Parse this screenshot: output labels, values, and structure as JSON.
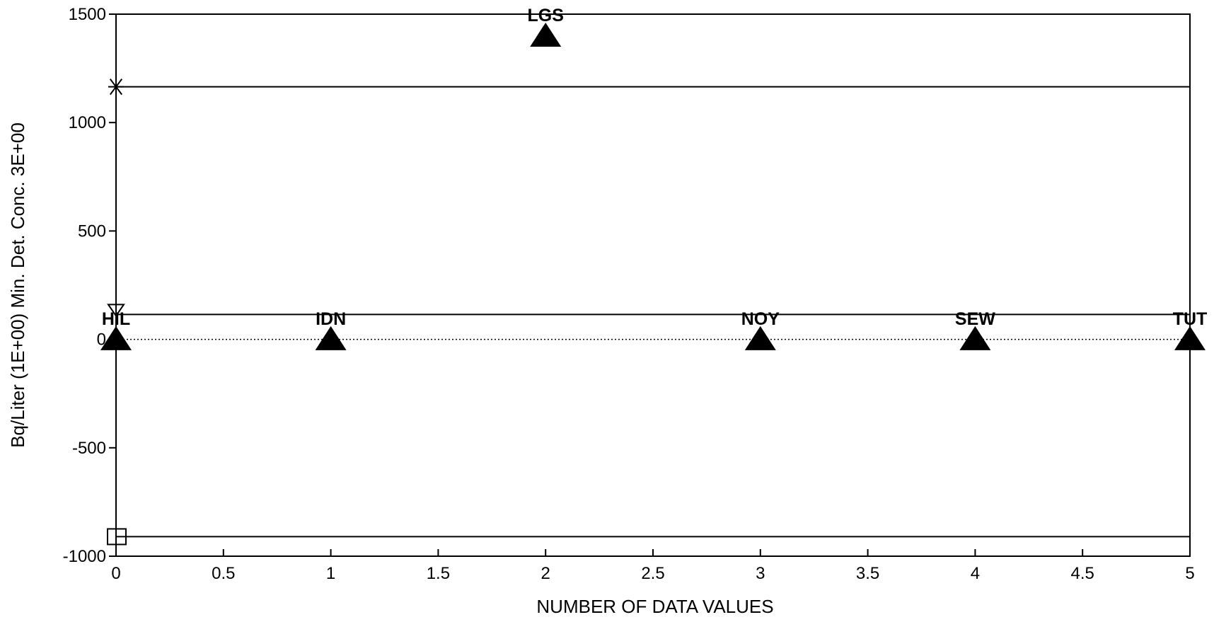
{
  "chart_data": {
    "type": "scatter",
    "xlabel": "NUMBER OF DATA VALUES",
    "ylabel": "Bq/Liter (1E+00) Min. Det. Conc. 3E+00",
    "xlim": [
      0,
      5
    ],
    "ylim": [
      -1000,
      1500
    ],
    "x_ticks": [
      0,
      0.5,
      1,
      1.5,
      2,
      2.5,
      3,
      3.5,
      4,
      4.5,
      5
    ],
    "x_tick_labels": [
      "0",
      "0.5",
      "1",
      "1.5",
      "2",
      "2.5",
      "3",
      "3.5",
      "4",
      "4.5",
      "5"
    ],
    "y_ticks": [
      -1000,
      -500,
      0,
      500,
      1000,
      1500
    ],
    "y_tick_labels": [
      "-1000",
      "-500",
      "0",
      "500",
      "1000",
      "1500"
    ],
    "grid": false,
    "points": [
      {
        "label": "HIL",
        "x": 0,
        "y": 0
      },
      {
        "label": "IDN",
        "x": 1,
        "y": 0
      },
      {
        "label": "LGS",
        "x": 2,
        "y": 1400
      },
      {
        "label": "NOY",
        "x": 3,
        "y": 0
      },
      {
        "label": "SEW",
        "x": 4,
        "y": 0
      },
      {
        "label": "TUT",
        "x": 5,
        "y": 0
      }
    ],
    "reference_lines": [
      {
        "y": 1165,
        "style": "solid",
        "marker": "asterisk"
      },
      {
        "y": 115,
        "style": "solid",
        "marker": "triangle-down-open"
      },
      {
        "y": 0,
        "style": "dotted",
        "marker": "none"
      },
      {
        "y": -910,
        "style": "solid",
        "marker": "square-open"
      }
    ],
    "colors": {
      "marker": "#000000",
      "line": "#000000"
    }
  }
}
